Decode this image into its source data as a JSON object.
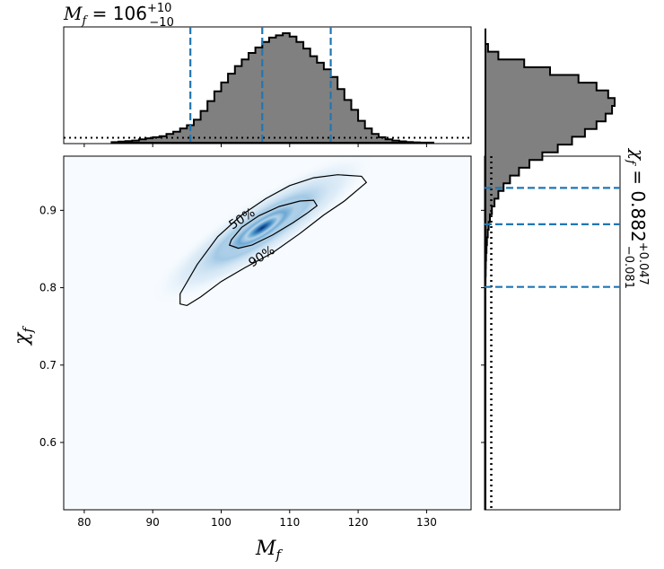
{
  "chart_data": [
    {
      "type": "heatmap",
      "xlabel": "M_f",
      "ylabel": "χ_f",
      "xlim": [
        77,
        136.5
      ],
      "ylim": [
        0.513,
        0.97
      ],
      "xticks": [
        80,
        90,
        100,
        110,
        120,
        130
      ],
      "yticks": [
        0.6,
        0.7,
        0.8,
        0.9
      ],
      "density_peak": {
        "x": 106,
        "y": 0.882
      },
      "contours": [
        {
          "label": "50%",
          "points": [
            [
              101.5,
              0.862
            ],
            [
              103,
              0.878
            ],
            [
              105.5,
              0.893
            ],
            [
              108.5,
              0.905
            ],
            [
              111.5,
              0.912
            ],
            [
              113.5,
              0.913
            ],
            [
              114,
              0.906
            ],
            [
              112.5,
              0.896
            ],
            [
              110.5,
              0.884
            ],
            [
              107.5,
              0.868
            ],
            [
              104.5,
              0.855
            ],
            [
              102.5,
              0.851
            ],
            [
              101.2,
              0.855
            ]
          ]
        },
        {
          "label": "90%",
          "points": [
            [
              94,
              0.792
            ],
            [
              96.5,
              0.83
            ],
            [
              99.5,
              0.866
            ],
            [
              103,
              0.894
            ],
            [
              106.5,
              0.915
            ],
            [
              110,
              0.932
            ],
            [
              113.5,
              0.942
            ],
            [
              117,
              0.946
            ],
            [
              120.5,
              0.944
            ],
            [
              121.2,
              0.936
            ],
            [
              118,
              0.912
            ],
            [
              115,
              0.894
            ],
            [
              111.5,
              0.87
            ],
            [
              107.5,
              0.845
            ],
            [
              103.5,
              0.826
            ],
            [
              100,
              0.808
            ],
            [
              97,
              0.788
            ],
            [
              95,
              0.777
            ],
            [
              94,
              0.779
            ]
          ]
        }
      ]
    },
    {
      "type": "bar",
      "title": "M_f = 106 +10 −10",
      "axis": "x",
      "bin_start": 84,
      "bin_width": 1,
      "values": [
        0.005,
        0.01,
        0.015,
        0.02,
        0.03,
        0.04,
        0.05,
        0.06,
        0.08,
        0.1,
        0.13,
        0.16,
        0.21,
        0.29,
        0.38,
        0.47,
        0.55,
        0.63,
        0.7,
        0.76,
        0.82,
        0.87,
        0.92,
        0.96,
        0.98,
        1.0,
        0.97,
        0.92,
        0.86,
        0.79,
        0.73,
        0.67,
        0.6,
        0.49,
        0.39,
        0.3,
        0.2,
        0.13,
        0.08,
        0.05,
        0.03,
        0.02,
        0.012,
        0.006,
        0.003,
        0.001,
        0.0008
      ],
      "prior": 0.045,
      "median": 106,
      "lower": 95.5,
      "upper": 116,
      "quantile_color": "#1f77b4",
      "fill_color": "#808080"
    },
    {
      "type": "bar",
      "title": "χ_f = 0.882 +0.047 −0.081",
      "axis": "y",
      "bin_start": 0.515,
      "bin_width": 0.01,
      "values": [
        0,
        0,
        0,
        0,
        0,
        0,
        0,
        0,
        0,
        0,
        0,
        0,
        0,
        0,
        0,
        0,
        0,
        0,
        0,
        0,
        0,
        0,
        0,
        0,
        0,
        0,
        0,
        0,
        0,
        0.001,
        0.002,
        0.003,
        0.005,
        0.008,
        0.012,
        0.018,
        0.025,
        0.035,
        0.05,
        0.07,
        0.1,
        0.14,
        0.19,
        0.26,
        0.34,
        0.44,
        0.56,
        0.67,
        0.77,
        0.86,
        0.93,
        0.98,
        1.0,
        0.95,
        0.86,
        0.72,
        0.5,
        0.3,
        0.1,
        0.02,
        0,
        0
      ],
      "prior": 0.05,
      "median": 0.882,
      "lower": 0.801,
      "upper": 0.929,
      "quantile_color": "#1f77b4",
      "fill_color": "#808080"
    }
  ],
  "labels": {
    "xlabel_main": "M",
    "xlabel_sub": "f",
    "ylabel_main": "χ",
    "ylabel_sub": "f",
    "top_title_main": "M",
    "top_title_sub": "f",
    "top_title_value": "106",
    "top_title_plus": "+10",
    "top_title_minus": "−10",
    "right_title_main": "χ",
    "right_title_sub": "f",
    "right_title_value": "0.882",
    "right_title_plus": "+0.047",
    "right_title_minus": "−0.081"
  }
}
